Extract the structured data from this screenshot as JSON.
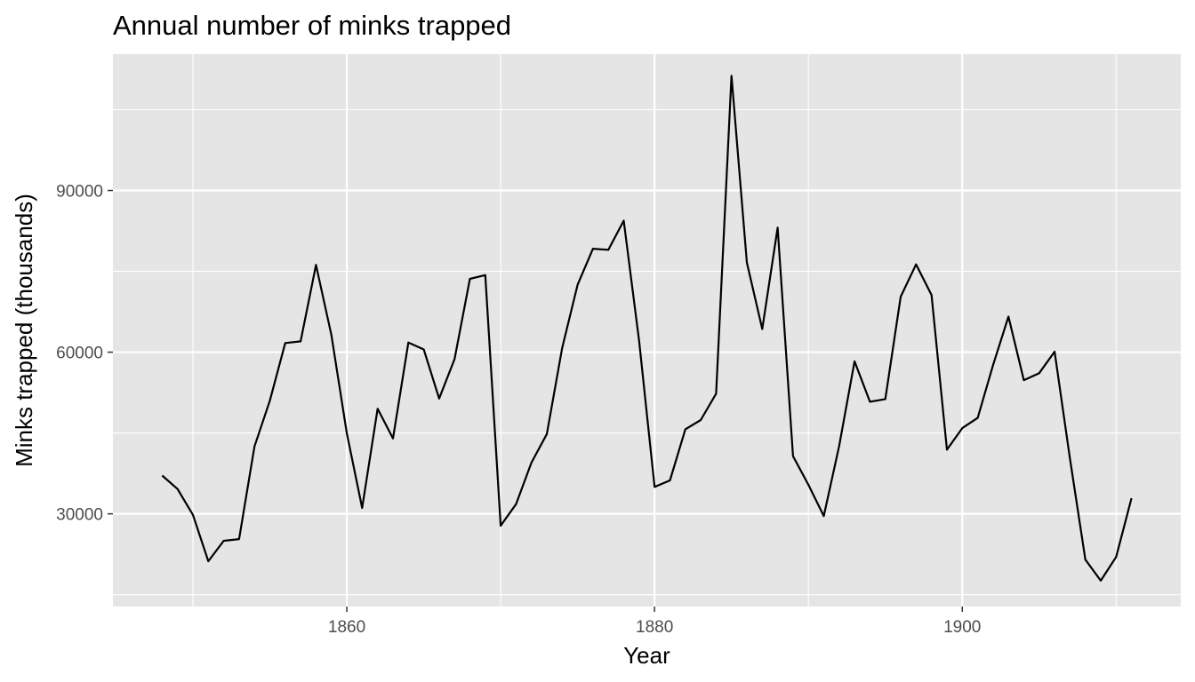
{
  "chart_data": {
    "type": "line",
    "title": "Annual number of minks trapped",
    "xlabel": "Year",
    "ylabel": "Minks trapped (thousands)",
    "xlim": [
      1844.8,
      1914.2
    ],
    "ylim": [
      12800,
      115300
    ],
    "x_ticks": [
      1860,
      1880,
      1900
    ],
    "x_minor_ticks": [
      1850,
      1870,
      1890,
      1910
    ],
    "y_ticks": [
      30000,
      60000,
      90000
    ],
    "y_minor_ticks": [
      15000,
      45000,
      75000,
      105000
    ],
    "grid": true,
    "colors": {
      "panel": "#e5e5e5",
      "grid": "#ffffff",
      "line": "#000000",
      "tick_text": "#4d4d4d"
    },
    "series": [
      {
        "x": [
          1848,
          1849,
          1850,
          1851,
          1852,
          1853,
          1854,
          1855,
          1856,
          1857,
          1858,
          1859,
          1860,
          1861,
          1862,
          1863,
          1864,
          1865,
          1866,
          1867,
          1868,
          1869,
          1870,
          1871,
          1872,
          1873,
          1874,
          1875,
          1876,
          1877,
          1878,
          1879,
          1880,
          1881,
          1882,
          1883,
          1884,
          1885,
          1886,
          1887,
          1888,
          1889,
          1890,
          1891,
          1892,
          1893,
          1894,
          1895,
          1896,
          1897,
          1898,
          1899,
          1900,
          1901,
          1902,
          1903,
          1904,
          1905,
          1906,
          1907,
          1908,
          1909,
          1910,
          1911
        ],
        "values": [
          37100,
          34600,
          29800,
          21200,
          25000,
          25300,
          42500,
          51000,
          61700,
          62000,
          76200,
          63200,
          45000,
          31100,
          49500,
          44000,
          61800,
          60500,
          51400,
          58700,
          73600,
          74300,
          27800,
          31800,
          39500,
          44800,
          60800,
          72500,
          79200,
          79000,
          84400,
          62100,
          35000,
          36200,
          45700,
          47400,
          52300,
          111300,
          76600,
          64300,
          83100,
          40700,
          35400,
          29600,
          42600,
          58300,
          50800,
          51300,
          70300,
          76300,
          70600,
          41900,
          45900,
          47800,
          57600,
          66600,
          54800,
          56100,
          60100,
          40200,
          21500,
          17600,
          22000,
          32900
        ]
      }
    ]
  }
}
